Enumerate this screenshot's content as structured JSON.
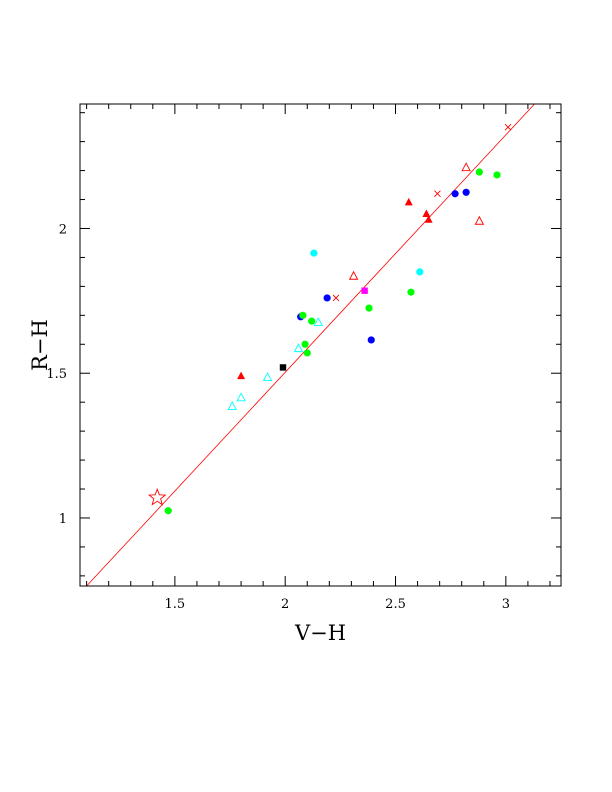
{
  "chart_data": {
    "type": "scatter",
    "title": "",
    "xlabel": "V−H",
    "ylabel": "R−H",
    "xlim": [
      1.07,
      3.25
    ],
    "ylim": [
      0.765,
      2.43
    ],
    "x_ticks": [
      {
        "value": 1.5,
        "label": "1.5"
      },
      {
        "value": 2,
        "label": "2"
      },
      {
        "value": 2.5,
        "label": "2.5"
      },
      {
        "value": 3,
        "label": "3"
      }
    ],
    "y_ticks": [
      {
        "value": 1,
        "label": "1"
      },
      {
        "value": 1.5,
        "label": "1.5"
      },
      {
        "value": 2,
        "label": "2"
      }
    ],
    "x_minor_step": 0.1,
    "y_minor_step": 0.1,
    "grid": false,
    "legend": "none",
    "fit_line": {
      "color": "#ff0000",
      "points": [
        [
          1.1,
          0.765
        ],
        [
          3.13,
          2.43
        ]
      ]
    },
    "series": [
      {
        "marker": "filled-circle",
        "color": "#0000ff",
        "points": [
          [
            2.07,
            1.695
          ],
          [
            2.19,
            1.76
          ],
          [
            2.39,
            1.615
          ],
          [
            2.77,
            2.12
          ],
          [
            2.82,
            2.125
          ]
        ]
      },
      {
        "marker": "filled-circle",
        "color": "#00ff00",
        "points": [
          [
            1.47,
            1.025
          ],
          [
            2.08,
            1.7
          ],
          [
            2.09,
            1.6
          ],
          [
            2.1,
            1.57
          ],
          [
            2.12,
            1.68
          ],
          [
            2.38,
            1.725
          ],
          [
            2.57,
            1.78
          ],
          [
            2.88,
            2.195
          ],
          [
            2.96,
            2.185
          ]
        ]
      },
      {
        "marker": "filled-circle",
        "color": "#00ffff",
        "points": [
          [
            2.13,
            1.915
          ],
          [
            2.61,
            1.85
          ]
        ]
      },
      {
        "marker": "filled-triangle",
        "color": "#ff0000",
        "points": [
          [
            1.8,
            1.49
          ],
          [
            2.56,
            2.09
          ],
          [
            2.64,
            2.05
          ],
          [
            2.65,
            2.03
          ]
        ]
      },
      {
        "marker": "open-triangle",
        "color": "#ff0000",
        "points": [
          [
            2.31,
            1.835
          ],
          [
            2.82,
            2.21
          ],
          [
            2.88,
            2.025
          ]
        ]
      },
      {
        "marker": "open-triangle",
        "color": "#00ffff",
        "points": [
          [
            1.76,
            1.385
          ],
          [
            1.8,
            1.415
          ],
          [
            1.92,
            1.485
          ],
          [
            2.06,
            1.585
          ],
          [
            2.15,
            1.675
          ]
        ]
      },
      {
        "marker": "filled-square",
        "color": "#000000",
        "points": [
          [
            1.99,
            1.52
          ]
        ]
      },
      {
        "marker": "filled-square",
        "color": "#ff00ff",
        "points": [
          [
            2.36,
            1.785
          ]
        ]
      },
      {
        "marker": "cross",
        "color": "#ff0000",
        "points": [
          [
            2.23,
            1.76
          ],
          [
            2.69,
            2.12
          ],
          [
            3.01,
            2.35
          ]
        ]
      },
      {
        "marker": "open-star",
        "color": "#ff0000",
        "points": [
          [
            1.42,
            1.07
          ]
        ]
      }
    ]
  }
}
